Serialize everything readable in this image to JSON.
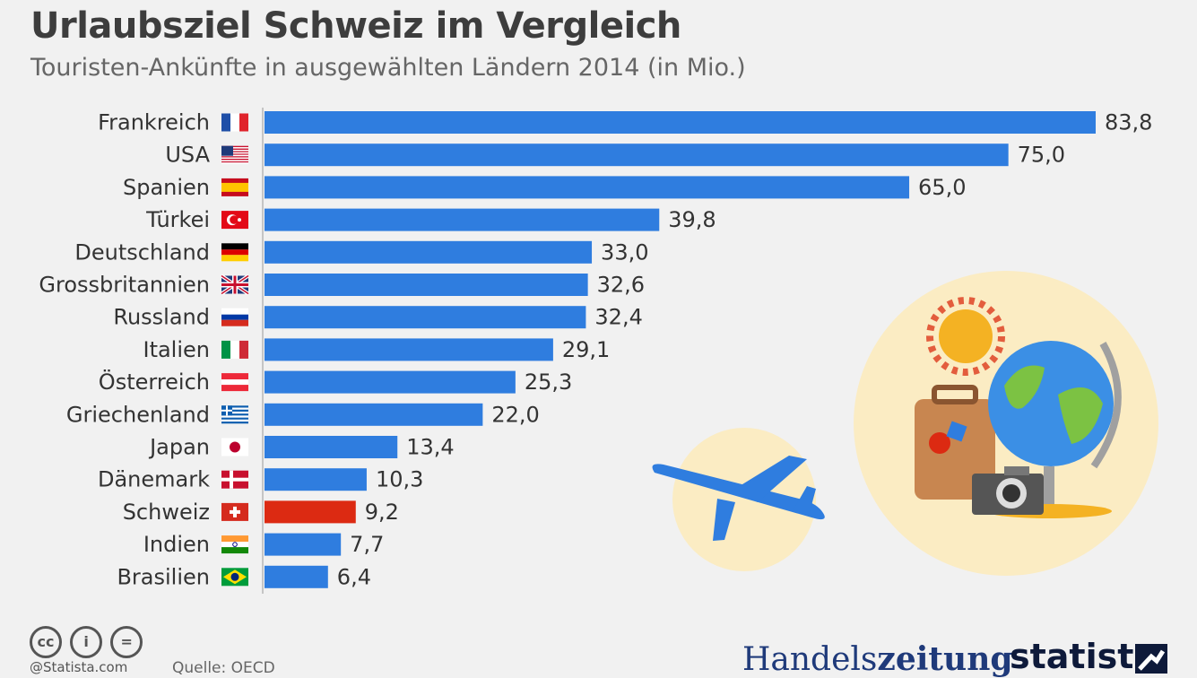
{
  "title": "Urlaubsziel Schweiz im Vergleich",
  "subtitle": "Touristen-Ankünfte in ausgewählten Ländern 2014 (in Mio.)",
  "chart_data": {
    "type": "bar",
    "orientation": "horizontal",
    "categories": [
      "Frankreich",
      "USA",
      "Spanien",
      "Türkei",
      "Deutschland",
      "Grossbritannien",
      "Russland",
      "Italien",
      "Österreich",
      "Griechenland",
      "Japan",
      "Dänemark",
      "Schweiz",
      "Indien",
      "Brasilien"
    ],
    "values": [
      83.8,
      75.0,
      65.0,
      39.8,
      33.0,
      32.6,
      32.4,
      29.1,
      25.3,
      22.0,
      13.4,
      10.3,
      9.2,
      7.7,
      6.4
    ],
    "value_labels": [
      "83,8",
      "75,0",
      "65,0",
      "39,8",
      "33,0",
      "32,6",
      "32,4",
      "29,1",
      "25,3",
      "22,0",
      "13,4",
      "10,3",
      "9,2",
      "7,7",
      "6,4"
    ],
    "flags": [
      "flag-france",
      "flag-usa",
      "flag-spain",
      "flag-turkey",
      "flag-germany",
      "flag-uk",
      "flag-russia",
      "flag-italy",
      "flag-austria",
      "flag-greece",
      "flag-japan",
      "flag-denmark",
      "flag-switzerland",
      "flag-india",
      "flag-brazil"
    ],
    "highlight": "Schweiz",
    "colors": {
      "bar": "#2f7ddf",
      "highlight": "#dc2a12"
    },
    "xlim": [
      0,
      83.8
    ],
    "grid": false,
    "legend": "none"
  },
  "illustration": {
    "icons": [
      "airplane-icon",
      "sun-icon",
      "suitcase-icon",
      "globe-icon",
      "camera-icon"
    ]
  },
  "footer": {
    "license_icons": [
      "creative-commons-icon",
      "attribution-icon",
      "no-derivatives-icon"
    ],
    "credit": "@Statista.com",
    "source": "Quelle: OECD",
    "brand_1_light": "Handels",
    "brand_1_bold": "zeitung",
    "brand_2": "statista"
  }
}
